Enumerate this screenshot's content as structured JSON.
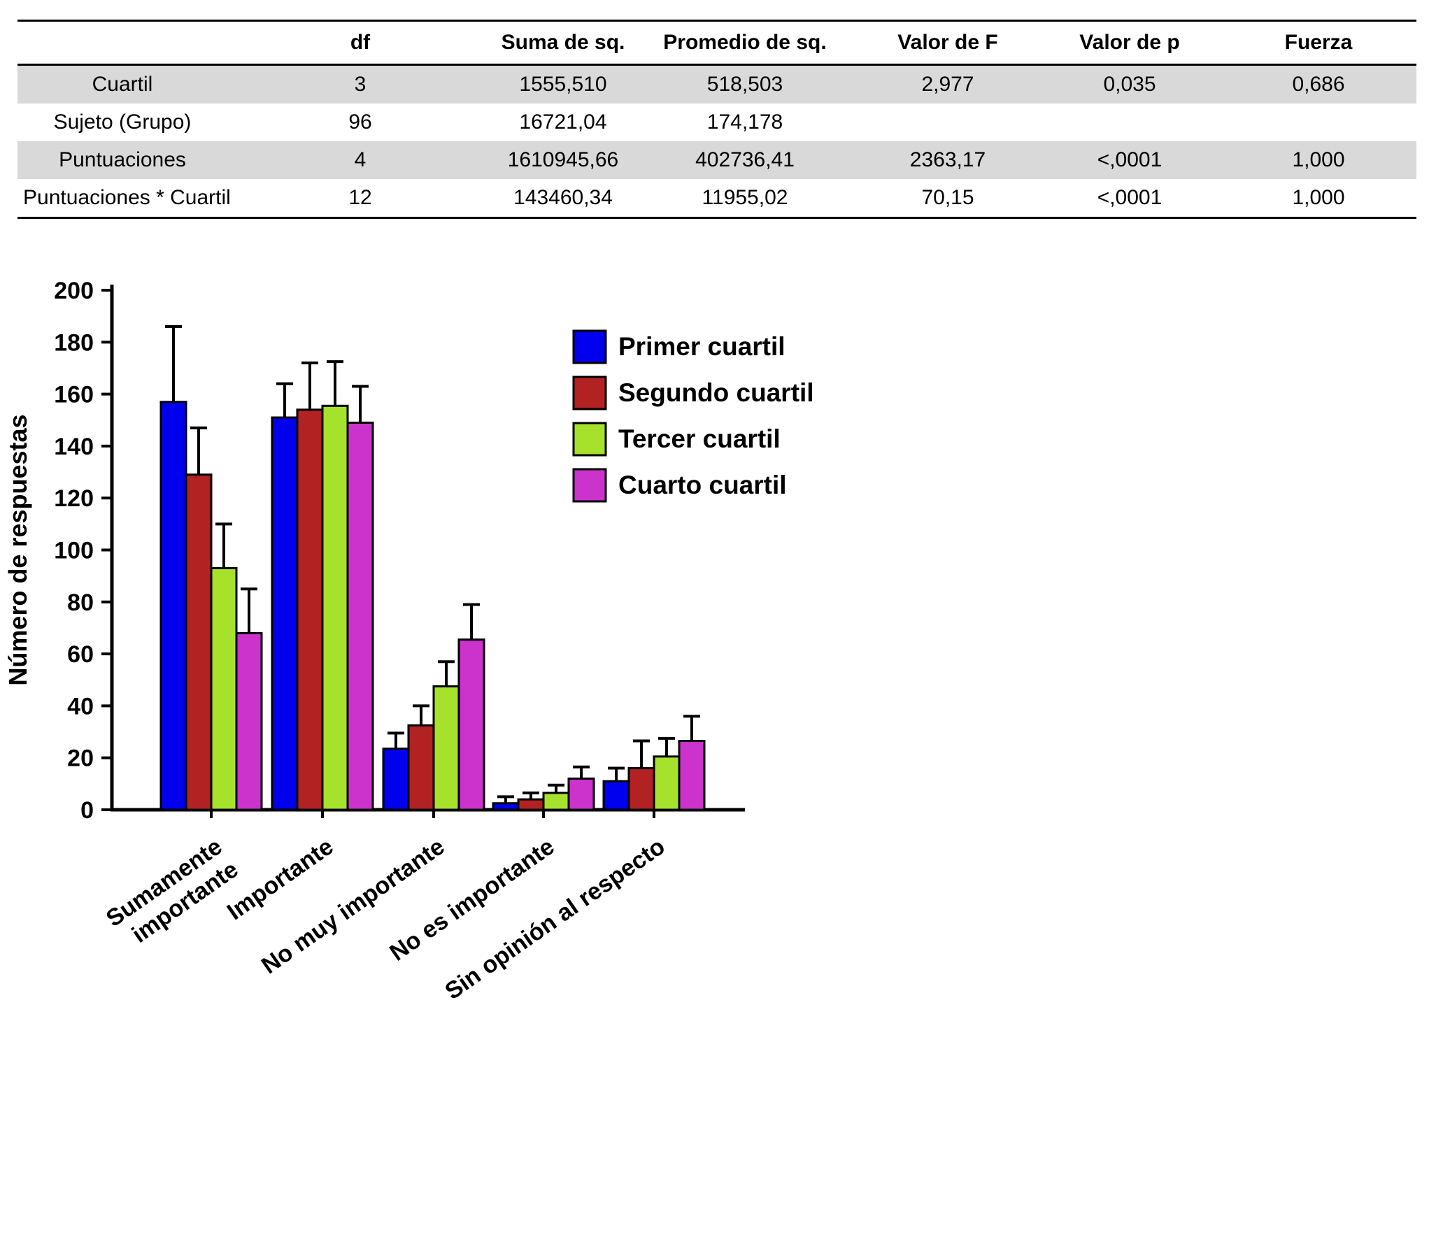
{
  "table": {
    "headers": [
      "",
      "df",
      "Suma de sq.",
      "Promedio de sq.",
      "Valor de F",
      "Valor de p",
      "Fuerza"
    ],
    "rows": [
      {
        "label": "Cuartil",
        "cells": [
          "3",
          "1555,510",
          "518,503",
          "2,977",
          "0,035",
          "0,686"
        ]
      },
      {
        "label": "Sujeto (Grupo)",
        "cells": [
          "96",
          "16721,04",
          "174,178",
          "",
          "",
          ""
        ]
      },
      {
        "label": "Puntuaciones",
        "cells": [
          "4",
          "1610945,66",
          "402736,41",
          "2363,17",
          "<,0001",
          "1,000"
        ]
      },
      {
        "label": "Puntuaciones * Cuartil",
        "cells": [
          "12",
          "143460,34",
          "11955,02",
          "70,15",
          "<,0001",
          "1,000"
        ]
      }
    ]
  },
  "chart_data": {
    "type": "bar",
    "title": "",
    "xlabel": "",
    "ylabel": "Número de respuestas",
    "ylim": [
      0,
      200
    ],
    "ytick_step": 20,
    "grid": false,
    "legend_position": "top-right",
    "categories": [
      "Sumamente\nimportante",
      "Importante",
      "No muy importante",
      "No es importante",
      "Sin opinión al respecto"
    ],
    "series": [
      {
        "name": "Primer cuartil",
        "color": "#0000EE",
        "values": [
          157,
          151,
          23.5,
          2.5,
          11
        ],
        "errors": [
          29,
          13,
          6,
          2.5,
          5
        ]
      },
      {
        "name": "Segundo cuartil",
        "color": "#B22222",
        "values": [
          129,
          154,
          32.5,
          4,
          16
        ],
        "errors": [
          18,
          18,
          7.5,
          2.5,
          10.5
        ]
      },
      {
        "name": "Tercer cuartil",
        "color": "#A6E22C",
        "values": [
          93,
          155.5,
          47.5,
          6.5,
          20.5
        ],
        "errors": [
          17,
          17,
          9.5,
          3,
          7
        ]
      },
      {
        "name": "Cuarto cuartil",
        "color": "#CC33CC",
        "values": [
          68,
          149,
          65.5,
          12,
          26.5
        ],
        "errors": [
          17,
          14,
          13.5,
          4.5,
          9.5
        ]
      }
    ]
  }
}
